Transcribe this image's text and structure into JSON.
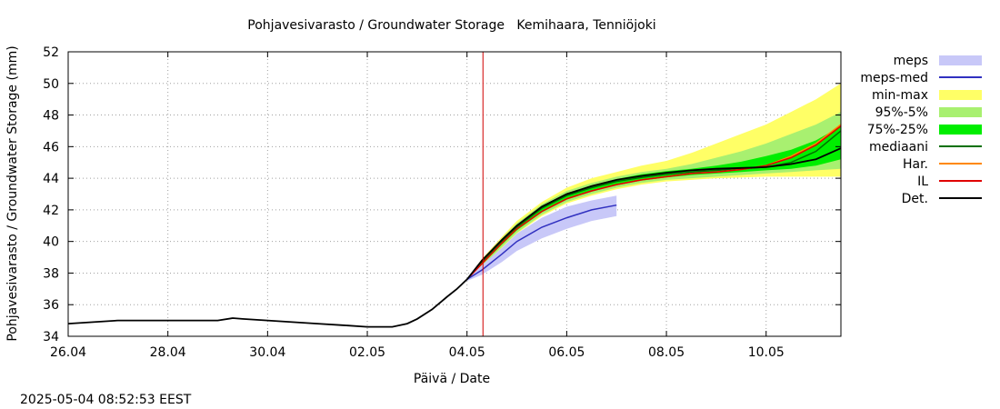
{
  "chart_data": {
    "type": "area",
    "title": "Pohjavesivarasto / Groundwater Storage   Kemihaara, Tenniöjoki",
    "xlabel": "Päivä / Date",
    "ylabel": "Pohjavesivarasto / Groundwater Storage (mm)",
    "timestamp": "2025-05-04 08:52:53 EEST",
    "xlim": [
      0,
      15.5
    ],
    "ylim": [
      34,
      52
    ],
    "x_unit": "days since 26.04 00:00",
    "x_ticks": [
      {
        "x": 0,
        "label": "26.04"
      },
      {
        "x": 2,
        "label": "28.04"
      },
      {
        "x": 4,
        "label": "30.04"
      },
      {
        "x": 6,
        "label": "02.05"
      },
      {
        "x": 8,
        "label": "04.05"
      },
      {
        "x": 10,
        "label": "06.05"
      },
      {
        "x": 12,
        "label": "08.05"
      },
      {
        "x": 14,
        "label": "10.05"
      }
    ],
    "y_ticks": [
      34,
      36,
      38,
      40,
      42,
      44,
      46,
      48,
      50,
      52
    ],
    "now_line_x": 8.32,
    "now_line_color": "#d00000",
    "legend": [
      {
        "label": "meps",
        "kind": "band",
        "color": "#c8c8f8"
      },
      {
        "label": "meps-med",
        "kind": "line",
        "color": "#3030c0"
      },
      {
        "label": "min-max",
        "kind": "band",
        "color": "#ffff66"
      },
      {
        "label": "95%-5%",
        "kind": "band",
        "color": "#a8f070"
      },
      {
        "label": "75%-25%",
        "kind": "band",
        "color": "#00ee00"
      },
      {
        "label": "mediaani",
        "kind": "line",
        "color": "#007000"
      },
      {
        "label": "Har.",
        "kind": "line",
        "color": "#ff8800"
      },
      {
        "label": "IL",
        "kind": "line",
        "color": "#e00000"
      },
      {
        "label": "Det.",
        "kind": "line",
        "color": "#000000"
      }
    ],
    "observed": {
      "name": "Det.",
      "x": [
        0,
        0.5,
        1,
        1.5,
        2,
        2.5,
        3,
        3.3,
        3.5,
        4,
        4.5,
        5,
        5.5,
        6,
        6.5,
        6.8,
        7,
        7.3,
        7.6,
        7.8,
        8.0
      ],
      "y": [
        34.8,
        34.9,
        35.0,
        35.0,
        35.0,
        35.0,
        35.0,
        35.15,
        35.1,
        35.0,
        34.9,
        34.8,
        34.7,
        34.6,
        34.6,
        34.8,
        35.1,
        35.7,
        36.5,
        37.0,
        37.6
      ]
    },
    "forecast_x": [
      8.0,
      8.3,
      8.7,
      9,
      9.5,
      10,
      10.5,
      11,
      11.5,
      12,
      12.5,
      13,
      13.5,
      14,
      14.5,
      15,
      15.5
    ],
    "series": [
      {
        "name": "mediaani",
        "values": [
          37.6,
          38.7,
          40.0,
          40.9,
          42.1,
          42.9,
          43.4,
          43.8,
          44.05,
          44.25,
          44.4,
          44.5,
          44.6,
          44.7,
          45.0,
          45.7,
          47.0
        ]
      },
      {
        "name": "Har.",
        "values": [
          37.6,
          38.6,
          39.9,
          40.8,
          41.9,
          42.7,
          43.2,
          43.6,
          43.9,
          44.1,
          44.3,
          44.4,
          44.55,
          44.8,
          45.4,
          46.2,
          47.4
        ]
      },
      {
        "name": "IL",
        "values": [
          37.6,
          38.6,
          39.9,
          40.8,
          41.9,
          42.7,
          43.2,
          43.6,
          43.9,
          44.1,
          44.3,
          44.4,
          44.55,
          44.8,
          45.3,
          46.1,
          47.3
        ]
      },
      {
        "name": "Det.",
        "values": [
          37.6,
          38.8,
          40.1,
          41.0,
          42.2,
          43.0,
          43.5,
          43.9,
          44.15,
          44.35,
          44.5,
          44.6,
          44.65,
          44.7,
          44.9,
          45.2,
          45.9
        ]
      }
    ],
    "bands": [
      {
        "name": "min-max",
        "lower": [
          37.6,
          38.4,
          39.6,
          40.5,
          41.6,
          42.4,
          42.9,
          43.3,
          43.6,
          43.8,
          43.9,
          44.0,
          44.05,
          44.1,
          44.1,
          44.1,
          44.1
        ],
        "upper": [
          37.6,
          38.9,
          40.3,
          41.3,
          42.5,
          43.4,
          44.0,
          44.4,
          44.8,
          45.1,
          45.6,
          46.2,
          46.8,
          47.4,
          48.2,
          49.0,
          50.0
        ]
      },
      {
        "name": "95%-5%",
        "lower": [
          37.6,
          38.45,
          39.65,
          40.55,
          41.7,
          42.5,
          43.0,
          43.4,
          43.7,
          43.9,
          44.0,
          44.1,
          44.2,
          44.3,
          44.4,
          44.5,
          44.6
        ],
        "upper": [
          37.6,
          38.85,
          40.2,
          41.15,
          42.35,
          43.2,
          43.7,
          44.1,
          44.4,
          44.6,
          44.9,
          45.3,
          45.7,
          46.2,
          46.8,
          47.4,
          48.2
        ]
      },
      {
        "name": "75%-25%",
        "lower": [
          37.6,
          38.55,
          39.8,
          40.7,
          41.85,
          42.65,
          43.15,
          43.55,
          43.85,
          44.05,
          44.2,
          44.3,
          44.4,
          44.5,
          44.6,
          44.8,
          45.2
        ],
        "upper": [
          37.6,
          38.8,
          40.1,
          41.05,
          42.25,
          43.05,
          43.55,
          43.95,
          44.25,
          44.45,
          44.6,
          44.8,
          45.05,
          45.4,
          45.8,
          46.4,
          47.3
        ]
      }
    ],
    "meps": {
      "x": [
        8.0,
        8.3,
        8.7,
        9.0,
        9.5,
        10.0,
        10.5,
        11.0
      ],
      "median": [
        37.6,
        38.2,
        39.2,
        40.0,
        40.9,
        41.5,
        42.0,
        42.3
      ],
      "lower": [
        37.5,
        37.9,
        38.7,
        39.4,
        40.2,
        40.8,
        41.3,
        41.6
      ],
      "upper": [
        37.7,
        38.5,
        39.6,
        40.5,
        41.5,
        42.2,
        42.6,
        42.9
      ]
    }
  }
}
